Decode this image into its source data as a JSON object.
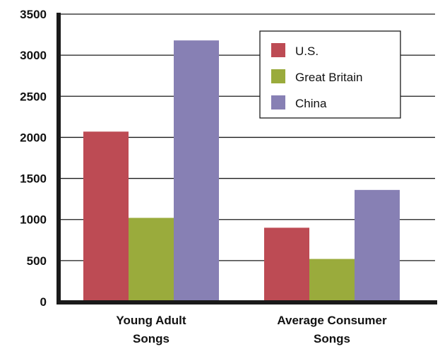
{
  "chart_data": {
    "type": "bar",
    "categories": [
      [
        "Young Adult",
        "Songs"
      ],
      [
        "Average Consumer",
        "Songs"
      ]
    ],
    "series": [
      {
        "name": "U.S.",
        "color": "#bd4b54",
        "values": [
          2070,
          900
        ]
      },
      {
        "name": "Great Britain",
        "color": "#9aab3c",
        "values": [
          1020,
          520
        ]
      },
      {
        "name": "China",
        "color": "#8780b4",
        "values": [
          3180,
          1360
        ]
      }
    ],
    "yticks": [
      0,
      500,
      1000,
      1500,
      2000,
      2500,
      3000,
      3500
    ],
    "ylim": [
      0,
      3500
    ],
    "grid": true,
    "legend": "top-right",
    "title": "",
    "xlabel": "",
    "ylabel": ""
  }
}
